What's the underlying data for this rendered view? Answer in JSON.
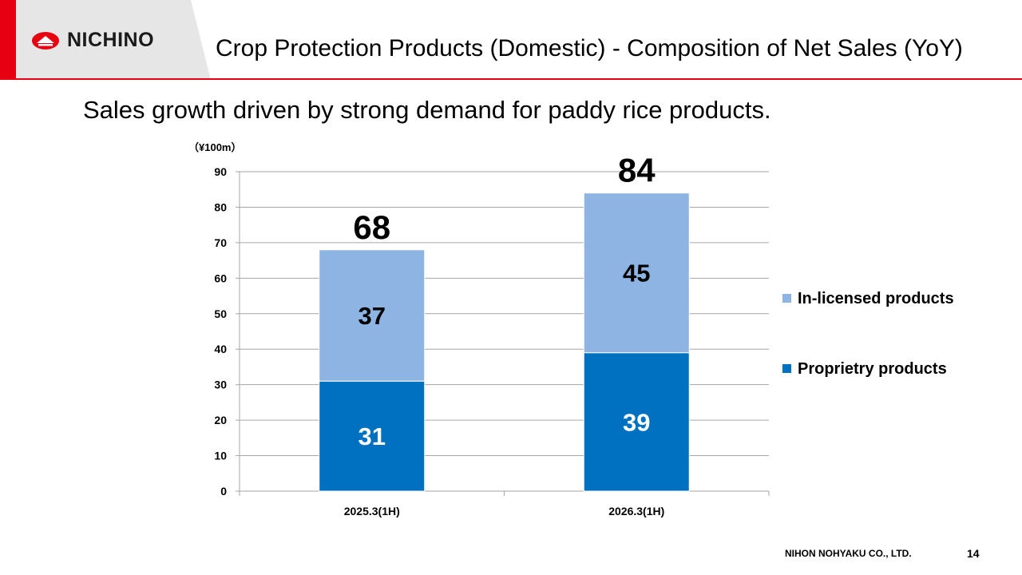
{
  "header": {
    "logo_text": "NICHINO",
    "title": "Crop Protection Products (Domestic) - Composition of Net Sales (YoY)"
  },
  "subtitle": "Sales growth driven by strong demand for paddy rice products.",
  "colors": {
    "brand_red": "#e60012",
    "proprietary": "#0070c0",
    "in_licensed": "#8eb4e3"
  },
  "chart_data": {
    "type": "bar",
    "stacked": true,
    "unit_label": "（¥100m）",
    "categories": [
      "2025.3(1H)",
      "2026.3(1H)"
    ],
    "series": [
      {
        "name": "Proprietry products",
        "values": [
          31,
          39
        ],
        "value_labels": [
          "31",
          "39"
        ]
      },
      {
        "name": "In-licensed products",
        "values": [
          37,
          45
        ],
        "value_labels": [
          "37",
          "45"
        ]
      }
    ],
    "totals": [
      "68",
      "84"
    ],
    "ylim": [
      0,
      90
    ],
    "yticks": [
      0,
      10,
      20,
      30,
      40,
      50,
      60,
      70,
      80,
      90
    ],
    "grid": true,
    "legend": [
      "In-licensed products",
      "Proprietry products"
    ],
    "legend_position": "right"
  },
  "footer": {
    "company": "NIHON NOHYAKU CO., LTD.",
    "page": "14"
  }
}
